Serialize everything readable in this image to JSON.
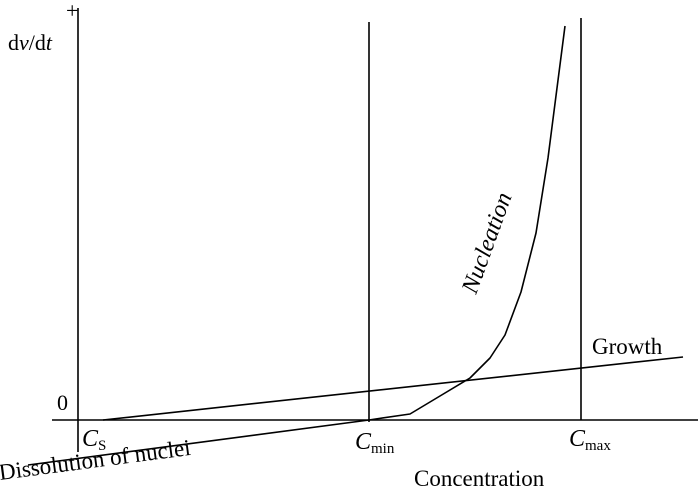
{
  "axes": {
    "y_label": "dv/dt",
    "y_plus": "+",
    "y_zero": "0",
    "x_label": "Concentration"
  },
  "markers": {
    "cs": {
      "main": "C",
      "sub": "S"
    },
    "cmin": {
      "main": "C",
      "sub": "min"
    },
    "cmax": {
      "main": "C",
      "sub": "max"
    }
  },
  "curves": {
    "nucleation": "Nucleation",
    "growth": "Growth",
    "dissolution": "Dissolution of nuclei"
  }
}
